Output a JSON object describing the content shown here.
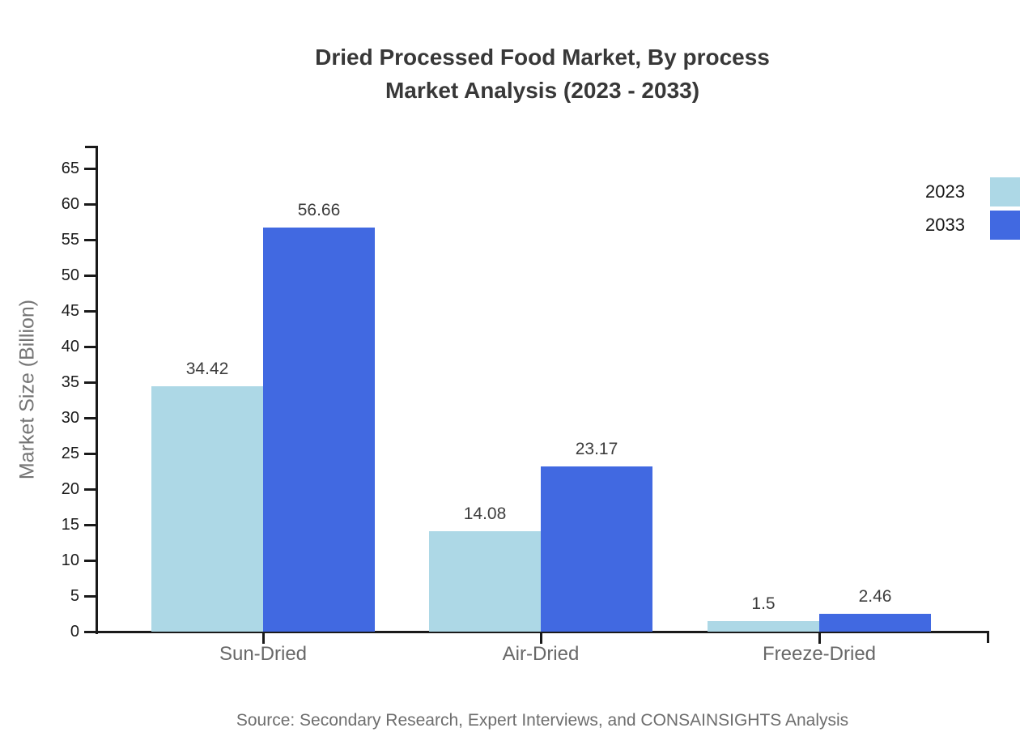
{
  "title": {
    "line1": "Dried Processed Food Market, By process",
    "line2": "Market Analysis (2023 - 2033)"
  },
  "source": "Source: Secondary Research, Expert Interviews, and CONSAINSIGHTS Analysis",
  "chart_data": {
    "type": "bar",
    "title": "Dried Processed Food Market, By process Market Analysis (2023 - 2033)",
    "categories": [
      "Sun-Dried",
      "Air-Dried",
      "Freeze-Dried"
    ],
    "series": [
      {
        "name": "2023",
        "color": "#ADD8E6",
        "values": [
          34.42,
          14.08,
          1.5
        ]
      },
      {
        "name": "2033",
        "color": "#4169E1",
        "values": [
          56.66,
          23.17,
          2.46
        ]
      }
    ],
    "value_labels": [
      [
        "34.42",
        "14.08",
        "1.5"
      ],
      [
        "56.66",
        "23.17",
        "2.46"
      ]
    ],
    "xlabel": "",
    "ylabel": "Market Size (Billion)",
    "ylim": [
      0,
      65
    ],
    "y_ticks": [
      0,
      5,
      10,
      15,
      20,
      25,
      30,
      35,
      40,
      45,
      50,
      55,
      60,
      65
    ],
    "grid": false,
    "legend_position": "top-right"
  },
  "colors": {
    "series_2023": "#ADD8E6",
    "series_2033": "#4169E1",
    "axis": "#1a1a1a",
    "title_text": "#383838",
    "muted_text": "#6e6e6e"
  }
}
